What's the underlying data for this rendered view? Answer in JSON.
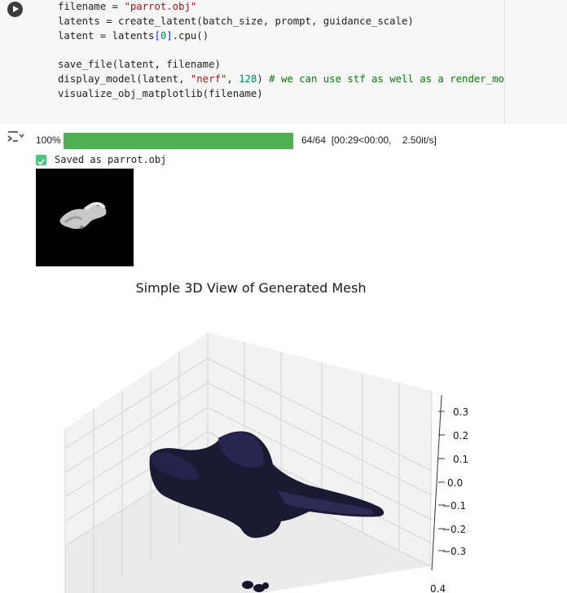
{
  "code_cell": {
    "lines": [
      {
        "parts": [
          {
            "t": "filename = ",
            "c": ""
          },
          {
            "t": "\"parrot.obj\"",
            "c": "str"
          }
        ]
      },
      {
        "parts": [
          {
            "t": "latents = create_latent(batch_size, prompt, guidance_scale)",
            "c": ""
          }
        ]
      },
      {
        "parts": [
          {
            "t": "latent = latents",
            "c": ""
          },
          {
            "t": "[",
            "c": "br"
          },
          {
            "t": "0",
            "c": "num"
          },
          {
            "t": "]",
            "c": "br"
          },
          {
            "t": ".cpu()",
            "c": ""
          }
        ]
      },
      {
        "parts": [
          {
            "t": "",
            "c": ""
          }
        ]
      },
      {
        "parts": [
          {
            "t": "save_file(latent, filename)",
            "c": ""
          }
        ]
      },
      {
        "parts": [
          {
            "t": "display_model(latent, ",
            "c": ""
          },
          {
            "t": "\"nerf\"",
            "c": "str"
          },
          {
            "t": ", ",
            "c": ""
          },
          {
            "t": "128",
            "c": "num"
          },
          {
            "t": ") ",
            "c": ""
          },
          {
            "t": "# we can use stf as well as a render_mode",
            "c": "com"
          }
        ]
      },
      {
        "parts": [
          {
            "t": "visualize_obj_matplotlib(filename)",
            "c": ""
          }
        ]
      }
    ]
  },
  "icons": {
    "run": "play-circle-icon",
    "output_toggle": "output-toggle-icon",
    "check": "checkbox-checked-icon"
  },
  "output": {
    "progress": {
      "percent_label": "100%",
      "fraction": 1.0,
      "stats": "64/64  [00:29<00:00,    2.50it/s]",
      "color": "#4caf50"
    },
    "saved_message": "Saved as parrot.obj",
    "plot": {
      "title": "Simple 3D View of Generated Mesh",
      "z_ticks": [
        "0.3",
        "0.2",
        "0.1",
        "0.0",
        "−0.1",
        "−0.2",
        "−0.3",
        "0.4"
      ],
      "mesh_color": "#1a1a33"
    }
  }
}
